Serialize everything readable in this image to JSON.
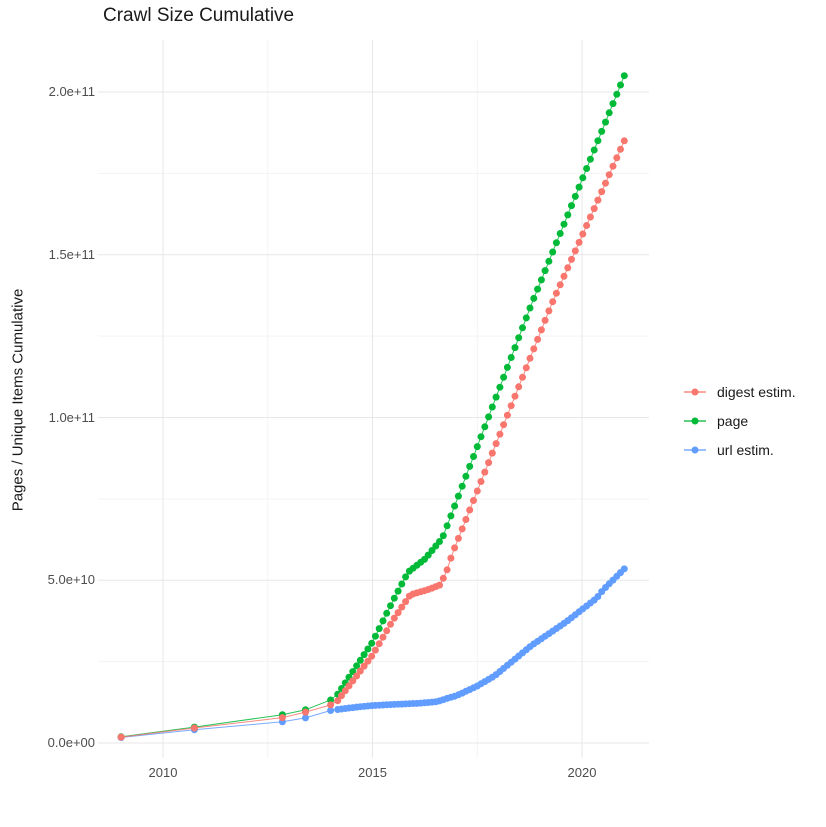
{
  "figure": {
    "title": "Crawl Size Cumulative",
    "y_axis_title": "Pages / Unique Items Cumulative"
  },
  "axes": {
    "x_tick_labels": [
      "2010",
      "2015",
      "2020"
    ],
    "y_tick_labels": [
      "0.0e+00",
      "5.0e+10",
      "1.0e+11",
      "1.5e+11",
      "2.0e+11"
    ]
  },
  "legend": {
    "items": [
      {
        "label": "digest estim.",
        "color": "#F8766D"
      },
      {
        "label": "page",
        "color": "#00BA38"
      },
      {
        "label": "url estim.",
        "color": "#619CFF"
      }
    ]
  },
  "style": {
    "background": "#ffffff",
    "grid_major_color": "#e7e7e7",
    "grid_minor_color": "#f3f3f3",
    "title_color": "#1a1a1a",
    "tick_label_color": "#4d4d4d"
  },
  "chart_data": {
    "type": "scatter",
    "title": "Crawl Size Cumulative",
    "xlabel": "",
    "ylabel": "Pages / Unique Items Cumulative",
    "legend_position": "right",
    "grid": "major and minor, light grey on white",
    "x_axis": {
      "tick_values": [
        2010,
        2015,
        2020
      ],
      "minor_tick_values": [
        2012.5,
        2017.5
      ],
      "range": [
        2008.45,
        2021.6
      ]
    },
    "y_axis": {
      "tick_values": [
        0,
        50000000000.0,
        100000000000.0,
        150000000000.0,
        200000000000.0
      ],
      "tick_labels": [
        "0.0e+00",
        "5.0e+10",
        "1.0e+11",
        "1.5e+11",
        "2.0e+11"
      ],
      "minor_tick_values": [
        25000000000.0,
        75000000000.0,
        125000000000.0,
        175000000000.0
      ],
      "range": [
        -5000000000.0,
        216000000000.0
      ]
    },
    "units_note": "anchor values below are in billions (1e9) of pages / unique items; dots are individual crawls sampled at crawl cadence between anchors",
    "sampling": {
      "early_crawl_years": [
        2009.0,
        2010.75,
        2012.85,
        2013.4,
        2014.0
      ],
      "dense_start_year": 2014.17,
      "dense_step_years": 0.09,
      "dense_end_year": 2021.01
    },
    "series": [
      {
        "name": "digest estim.",
        "color": "#F8766D",
        "anchors_year_billion": [
          [
            2009.0,
            1.8
          ],
          [
            2010.75,
            4.6
          ],
          [
            2012.85,
            7.8
          ],
          [
            2013.4,
            9.5
          ],
          [
            2014.0,
            11.7
          ],
          [
            2014.17,
            13.0
          ],
          [
            2015.0,
            27.0
          ],
          [
            2015.5,
            38.0
          ],
          [
            2015.9,
            45.5
          ],
          [
            2016.3,
            47.0
          ],
          [
            2016.6,
            48.5
          ],
          [
            2016.75,
            52.0
          ],
          [
            2016.9,
            58.0
          ],
          [
            2019.28,
            135.0
          ],
          [
            2021.01,
            185.0
          ]
        ]
      },
      {
        "name": "page",
        "color": "#00BA38",
        "anchors_year_billion": [
          [
            2009.0,
            1.9
          ],
          [
            2010.75,
            4.9
          ],
          [
            2012.85,
            8.7
          ],
          [
            2013.4,
            10.2
          ],
          [
            2014.0,
            13.2
          ],
          [
            2014.17,
            15.0
          ],
          [
            2015.0,
            31.0
          ],
          [
            2015.5,
            44.0
          ],
          [
            2015.85,
            52.5
          ],
          [
            2016.25,
            56.5
          ],
          [
            2016.67,
            63.0
          ],
          [
            2018.8,
            135.0
          ],
          [
            2021.01,
            205.0
          ]
        ]
      },
      {
        "name": "url estim.",
        "color": "#619CFF",
        "anchors_year_billion": [
          [
            2009.0,
            1.7
          ],
          [
            2010.75,
            4.1
          ],
          [
            2012.85,
            6.5
          ],
          [
            2013.4,
            7.7
          ],
          [
            2014.0,
            10.0
          ],
          [
            2014.17,
            10.3
          ],
          [
            2014.6,
            11.0
          ],
          [
            2015.0,
            11.5
          ],
          [
            2015.6,
            11.9
          ],
          [
            2016.1,
            12.2
          ],
          [
            2016.55,
            12.7
          ],
          [
            2016.8,
            13.8
          ],
          [
            2017.0,
            14.5
          ],
          [
            2017.5,
            17.5
          ],
          [
            2017.9,
            20.5
          ],
          [
            2018.8,
            30.0
          ],
          [
            2019.6,
            37.0
          ],
          [
            2020.0,
            41.0
          ],
          [
            2020.35,
            44.5
          ],
          [
            2020.5,
            47.0
          ],
          [
            2021.01,
            53.5
          ]
        ]
      }
    ],
    "final_values_billion": {
      "page": 205,
      "digest_estim": 185,
      "url_estim": 53.5
    }
  }
}
